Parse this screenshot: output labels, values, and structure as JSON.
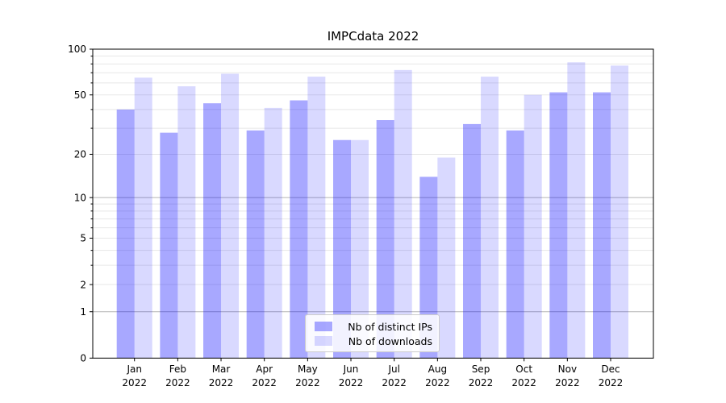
{
  "figure": {
    "background": "#ffffff",
    "text_color": "#000000"
  },
  "chart_data": {
    "type": "bar",
    "title": "IMPCdata 2022",
    "categories": [
      "Jan",
      "Feb",
      "Mar",
      "Apr",
      "May",
      "Jun",
      "Jul",
      "Aug",
      "Sep",
      "Oct",
      "Nov",
      "Dec"
    ],
    "category_sub_label": "2022",
    "series": [
      {
        "name": "Nb of distinct IPs",
        "color": "#0000ff",
        "alpha": 0.34,
        "values": [
          40,
          28,
          44,
          29,
          46,
          25,
          34,
          14,
          32,
          29,
          52,
          52
        ]
      },
      {
        "name": "Nb of downloads",
        "color": "#0000ff",
        "alpha": 0.15,
        "values": [
          65,
          57,
          69,
          41,
          66,
          25,
          73,
          19,
          66,
          50,
          82,
          78
        ]
      }
    ],
    "xlabel": "",
    "ylabel": "",
    "yscale": "log1p",
    "ylim": [
      0,
      100
    ],
    "y_major_ticks": [
      0,
      1,
      2,
      5,
      10,
      20,
      50,
      100
    ],
    "y_minor_ticks": [
      3,
      4,
      6,
      7,
      8,
      9,
      30,
      40,
      60,
      70,
      80,
      90
    ],
    "grid": true,
    "grid_major_color": "#b5b5b5",
    "grid_minor_color": "#e7e7e7",
    "axis_color": "#000000",
    "legend_position": "lower center"
  }
}
